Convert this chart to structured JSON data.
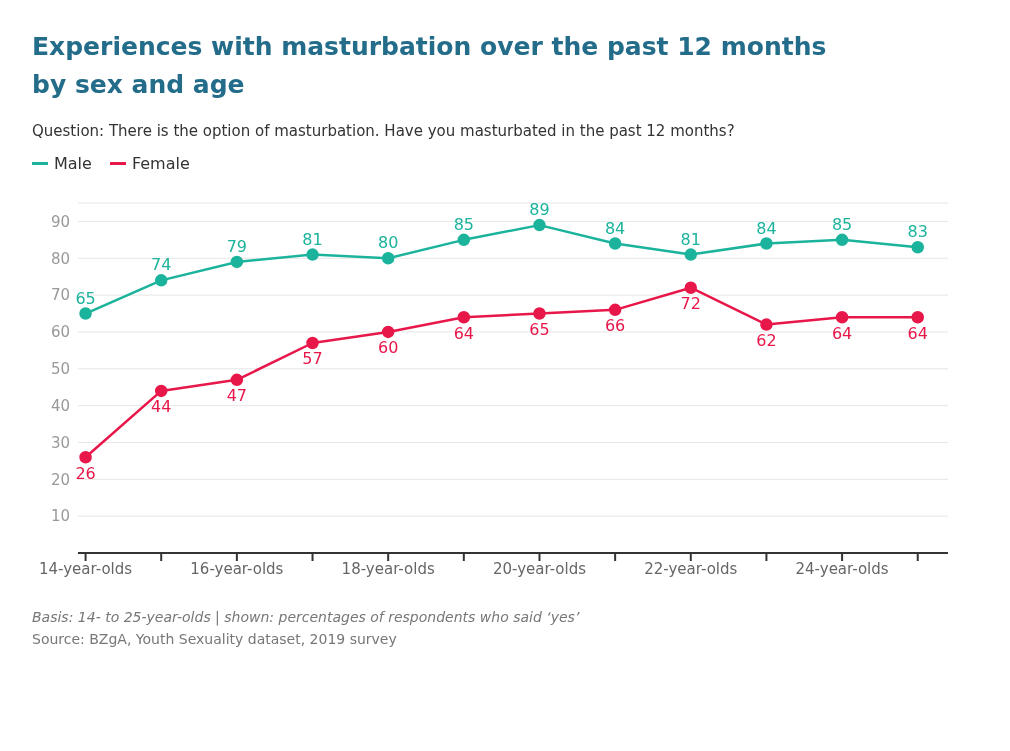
{
  "chart_data": {
    "type": "line",
    "title": "Experiences with masturbation over the past 12 months by sex and age",
    "subtitle": "Question: There is the option of masturbation. Have you masturbated in the past 12 months?",
    "categories": [
      "14-year-olds",
      null,
      "16-year-olds",
      null,
      "18-year-olds",
      null,
      "20-year-olds",
      null,
      "22-year-olds",
      null,
      "24-year-olds",
      null
    ],
    "series": [
      {
        "name": "Male",
        "color": "#1bb39c",
        "values": [
          65,
          74,
          79,
          81,
          80,
          85,
          89,
          84,
          81,
          84,
          85,
          83
        ]
      },
      {
        "name": "Female",
        "color": "#e8174a",
        "values": [
          26,
          44,
          47,
          57,
          60,
          64,
          65,
          66,
          72,
          62,
          64,
          64
        ]
      }
    ],
    "ylim": [
      0,
      95
    ],
    "yticks": [
      10,
      20,
      30,
      40,
      50,
      60,
      70,
      80,
      90
    ],
    "grid": "y",
    "legend": "top left",
    "marker": "circle",
    "data_labels": true,
    "annotations": [
      "Basis: 14- to 25-year-olds | shown: percentages of respondents who said ‘yes’",
      "Source: BZgA, Youth Sexuality dataset, 2019 survey"
    ]
  }
}
